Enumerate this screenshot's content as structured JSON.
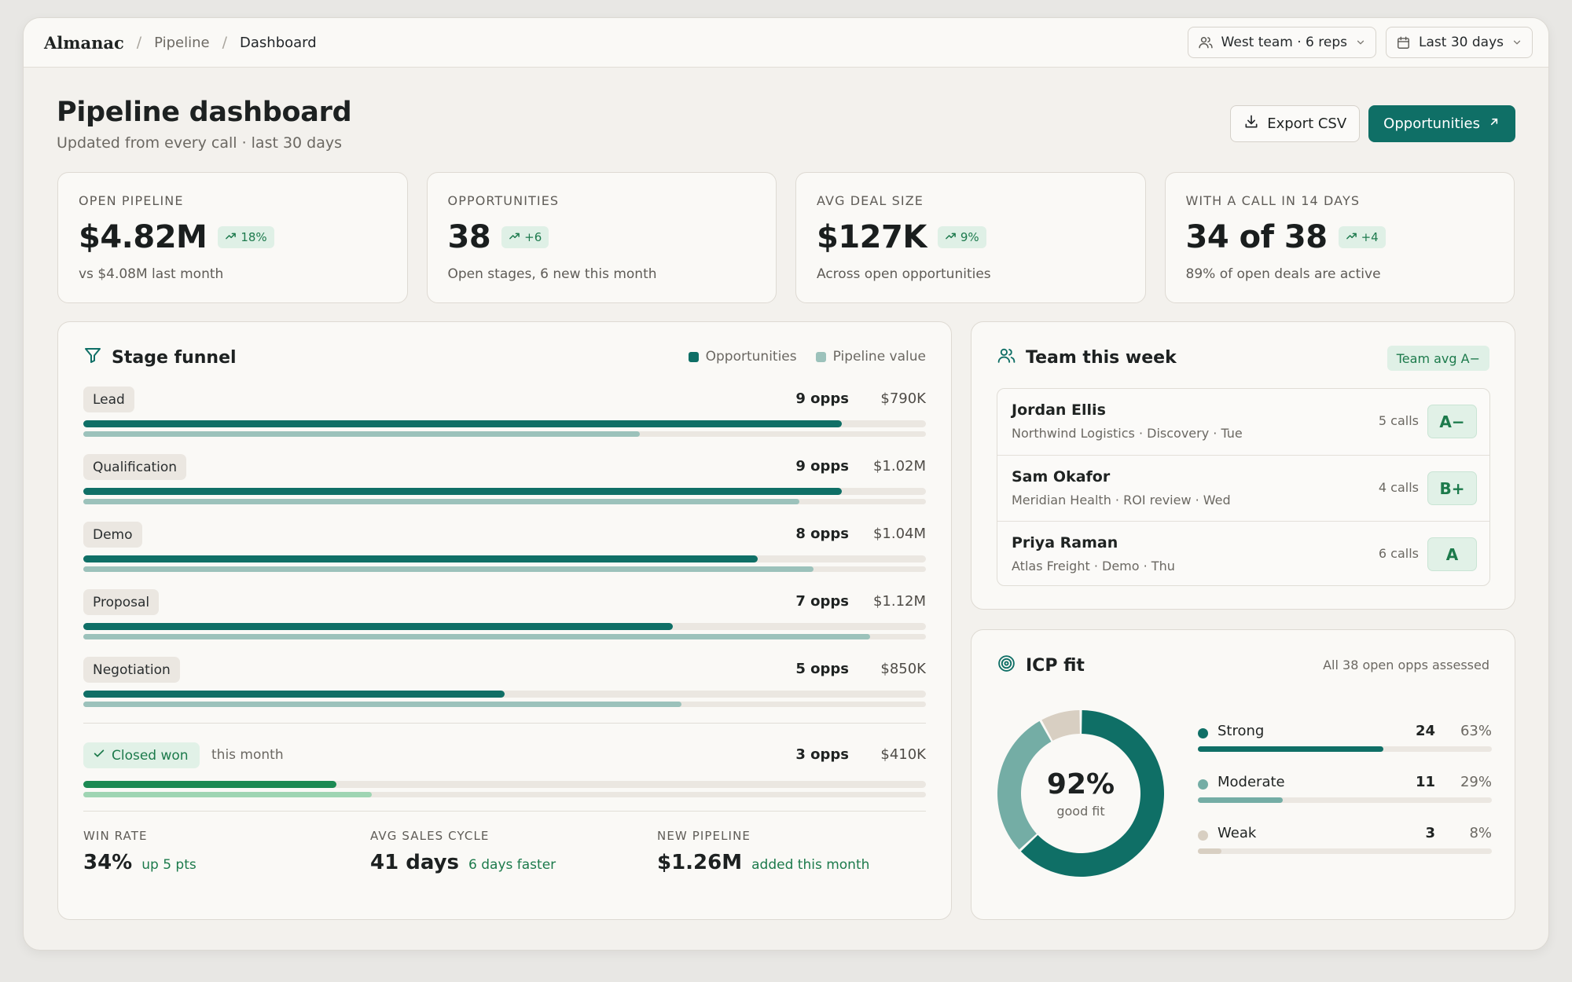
{
  "breadcrumb": {
    "brand": "Almanac",
    "items": [
      "Pipeline",
      "Dashboard"
    ]
  },
  "filters": {
    "team": "West team · 6 reps",
    "range": "Last 30 days"
  },
  "header": {
    "title": "Pipeline dashboard",
    "subtitle": "Updated from every call · last 30 days",
    "export_label": "Export CSV",
    "primary_label": "Opportunities"
  },
  "stats": [
    {
      "label": "OPEN PIPELINE",
      "value": "$4.82M",
      "delta": "18%",
      "note": "vs $4.08M last month"
    },
    {
      "label": "OPPORTUNITIES",
      "value": "38",
      "delta": "+6",
      "note": "Open stages, 6 new this month"
    },
    {
      "label": "AVG DEAL SIZE",
      "value": "$127K",
      "delta": "9%",
      "note": "Across open opportunities"
    },
    {
      "label": "WITH A CALL IN 14 DAYS",
      "value": "34 of 38",
      "delta": "+4",
      "note": "89% of open deals are active"
    }
  ],
  "funnel": {
    "title": "Stage funnel",
    "legend": {
      "opps": "Opportunities",
      "value": "Pipeline value"
    },
    "colors": {
      "opps": "#0f6f66",
      "value": "#9cc2bb",
      "won_opps": "#1c8a53",
      "won_value": "#9fd5b3"
    },
    "stages": [
      {
        "name": "Lead",
        "opps": "9 opps",
        "value": "$790K",
        "opps_frac": 0.9,
        "value_frac": 0.66
      },
      {
        "name": "Qualification",
        "opps": "9 opps",
        "value": "$1.02M",
        "opps_frac": 0.9,
        "value_frac": 0.85
      },
      {
        "name": "Demo",
        "opps": "8 opps",
        "value": "$1.04M",
        "opps_frac": 0.8,
        "value_frac": 0.867
      },
      {
        "name": "Proposal",
        "opps": "7 opps",
        "value": "$1.12M",
        "opps_frac": 0.7,
        "value_frac": 0.934
      },
      {
        "name": "Negotiation",
        "opps": "5 opps",
        "value": "$850K",
        "opps_frac": 0.5,
        "value_frac": 0.71
      }
    ],
    "won": {
      "name": "Closed won",
      "note": "this month",
      "opps": "3 opps",
      "value": "$410K",
      "opps_frac": 0.3,
      "value_frac": 0.342
    },
    "kpis": [
      {
        "label": "WIN RATE",
        "value": "34%",
        "note": "up 5 pts"
      },
      {
        "label": "AVG SALES CYCLE",
        "value": "41 days",
        "note": "6 days faster"
      },
      {
        "label": "NEW PIPELINE",
        "value": "$1.26M",
        "note": "added this month"
      }
    ]
  },
  "team": {
    "title": "Team this week",
    "avg": "Team avg A−",
    "reps": [
      {
        "name": "Jordan Ellis",
        "meta": "Northwind Logistics · Discovery · Tue",
        "calls": "5 calls",
        "grade": "A−"
      },
      {
        "name": "Sam Okafor",
        "meta": "Meridian Health · ROI review · Wed",
        "calls": "4 calls",
        "grade": "B+"
      },
      {
        "name": "Priya Raman",
        "meta": "Atlas Freight · Demo · Thu",
        "calls": "6 calls",
        "grade": "A"
      }
    ]
  },
  "icp": {
    "title": "ICP fit",
    "note": "All 38 open opps assessed",
    "center_pct": "92%",
    "center_label": "good fit",
    "segments": [
      {
        "name": "Strong",
        "count": "24",
        "pct": "63%",
        "share": 0.63,
        "color": "#0f6f66"
      },
      {
        "name": "Moderate",
        "count": "11",
        "pct": "29%",
        "share": 0.29,
        "color": "#74ada5"
      },
      {
        "name": "Weak",
        "count": "3",
        "pct": "8%",
        "share": 0.08,
        "color": "#d8cfc2"
      }
    ]
  }
}
